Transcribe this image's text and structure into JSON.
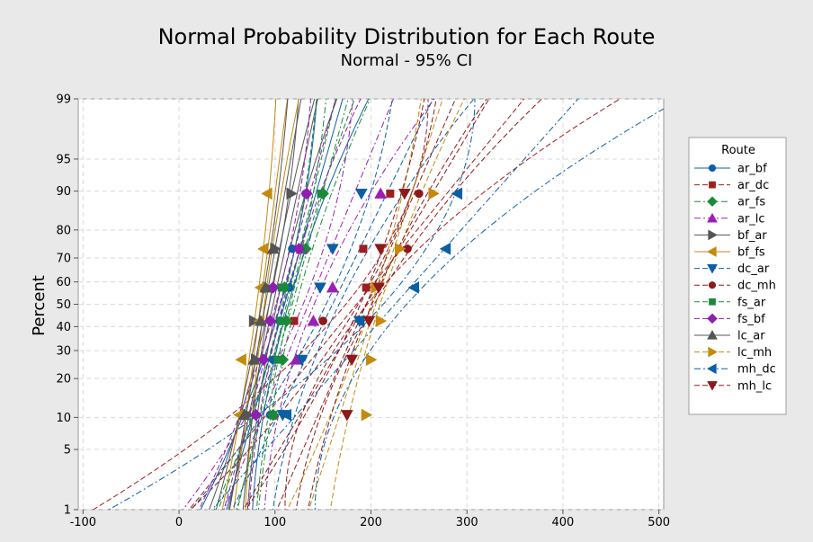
{
  "chart_data": {
    "type": "scatter",
    "title": "Normal Probability Distribution for Each Route",
    "subtitle": "Normal - 95% CI",
    "xlabel": "",
    "ylabel": "Percent",
    "xlim": [
      -105,
      505
    ],
    "ylim": [
      1,
      99
    ],
    "x_ticks": [
      -100,
      0,
      100,
      200,
      300,
      400,
      500
    ],
    "y_ticks": [
      1,
      5,
      10,
      20,
      30,
      40,
      50,
      60,
      70,
      80,
      90,
      95,
      99
    ],
    "y_scale": "normal-probability",
    "grid": true,
    "legend_title": "Route",
    "legend_position": "right",
    "series": [
      {
        "name": "ar_bf",
        "color": "#0b5fa5",
        "marker": "circle",
        "dash": "solid",
        "mean": 110,
        "sd": 26,
        "ci_lower_at_1": 28,
        "ci_upper_at_1": 82,
        "points": [
          [
            95,
            10.5
          ],
          [
            98,
            26.5
          ],
          [
            105,
            42.5
          ],
          [
            115,
            57.5
          ],
          [
            118,
            73.5
          ],
          [
            132,
            89.5
          ]
        ]
      },
      {
        "name": "ar_dc",
        "color": "#9e1f1f",
        "marker": "square",
        "dash": "dash",
        "mean": 185,
        "sd": 75,
        "ci_lower_at_1": -78,
        "ci_upper_at_1": 122,
        "points": [
          [
            120,
            42.5
          ],
          [
            125,
            26.5
          ],
          [
            195,
            57.5
          ],
          [
            192,
            73.5
          ],
          [
            220,
            89.5
          ]
        ]
      },
      {
        "name": "ar_fs",
        "color": "#1a8a3a",
        "marker": "diamond",
        "dash": "dashdot",
        "mean": 118,
        "sd": 25,
        "ci_lower_at_1": 44,
        "ci_upper_at_1": 90,
        "points": [
          [
            98,
            10.5
          ],
          [
            108,
            26.5
          ],
          [
            112,
            42.5
          ],
          [
            110,
            57.5
          ],
          [
            132,
            73.5
          ],
          [
            150,
            89.5
          ]
        ]
      },
      {
        "name": "ar_lc",
        "color": "#9b1fb5",
        "marker": "triangle-up",
        "dash": "dashdot",
        "mean": 135,
        "sd": 38,
        "ci_lower_at_1": 10,
        "ci_upper_at_1": 95,
        "points": [
          [
            122,
            26.5
          ],
          [
            140,
            42.5
          ],
          [
            160,
            57.5
          ],
          [
            128,
            73.5
          ],
          [
            210,
            89.5
          ]
        ]
      },
      {
        "name": "bf_ar",
        "color": "#555555",
        "marker": "triangle-right",
        "dash": "solid",
        "mean": 98,
        "sd": 20,
        "ci_lower_at_1": 32,
        "ci_upper_at_1": 72,
        "points": [
          [
            72,
            10.5
          ],
          [
            80,
            26.5
          ],
          [
            78,
            42.5
          ],
          [
            92,
            57.5
          ],
          [
            100,
            73.5
          ],
          [
            117,
            89.5
          ]
        ]
      },
      {
        "name": "bf_fs",
        "color": "#c48a0e",
        "marker": "triangle-left",
        "dash": "solid",
        "mean": 85,
        "sd": 12,
        "ci_lower_at_1": 34,
        "ci_upper_at_1": 58,
        "points": [
          [
            63,
            10.5
          ],
          [
            65,
            26.5
          ],
          [
            84,
            42.5
          ],
          [
            85,
            57.5
          ],
          [
            88,
            73.5
          ],
          [
            92,
            89.5
          ]
        ]
      },
      {
        "name": "dc_ar",
        "color": "#0b5fa5",
        "marker": "triangle-down",
        "dash": "dash",
        "mean": 160,
        "sd": 45,
        "ci_lower_at_1": 25,
        "ci_upper_at_1": 110,
        "points": [
          [
            108,
            10.5
          ],
          [
            128,
            26.5
          ],
          [
            188,
            42.5
          ],
          [
            147,
            57.5
          ],
          [
            160,
            73.5
          ],
          [
            190,
            89.5
          ]
        ]
      },
      {
        "name": "dc_mh",
        "color": "#8b1a1a",
        "marker": "circle",
        "dash": "dash",
        "mean": 195,
        "sd": 55,
        "ci_lower_at_1": 30,
        "ci_upper_at_1": 140,
        "points": [
          [
            150,
            42.5
          ],
          [
            238,
            73.5
          ],
          [
            250,
            89.5
          ]
        ]
      },
      {
        "name": "fs_ar",
        "color": "#1a8a3a",
        "marker": "square",
        "dash": "dash",
        "mean": 112,
        "sd": 22,
        "ci_lower_at_1": 48,
        "ci_upper_at_1": 88,
        "points": [
          [
            98,
            10.5
          ],
          [
            103,
            26.5
          ],
          [
            106,
            42.5
          ],
          [
            107,
            57.5
          ],
          [
            128,
            73.5
          ],
          [
            148,
            89.5
          ]
        ]
      },
      {
        "name": "fs_bf",
        "color": "#8e1fb0",
        "marker": "diamond",
        "dash": "dash",
        "mean": 105,
        "sd": 25,
        "ci_lower_at_1": 30,
        "ci_upper_at_1": 82,
        "points": [
          [
            80,
            10.5
          ],
          [
            88,
            26.5
          ],
          [
            95,
            42.5
          ],
          [
            98,
            57.5
          ],
          [
            125,
            73.5
          ],
          [
            133,
            89.5
          ]
        ]
      },
      {
        "name": "lc_ar",
        "color": "#555555",
        "marker": "triangle-up",
        "dash": "solid",
        "mean": 90,
        "sd": 16,
        "ci_lower_at_1": 40,
        "ci_upper_at_1": 68,
        "points": [
          [
            68,
            10.5
          ],
          [
            78,
            26.5
          ],
          [
            85,
            42.5
          ],
          [
            90,
            57.5
          ],
          [
            98,
            73.5
          ]
        ]
      },
      {
        "name": "lc_mh",
        "color": "#c48a0e",
        "marker": "triangle-right",
        "dash": "dash",
        "mean": 205,
        "sd": 30,
        "ci_lower_at_1": 150,
        "ci_upper_at_1": 195,
        "points": [
          [
            195,
            10.5
          ],
          [
            200,
            26.5
          ],
          [
            210,
            42.5
          ],
          [
            205,
            57.5
          ],
          [
            230,
            73.5
          ],
          [
            265,
            89.5
          ]
        ]
      },
      {
        "name": "mh_dc",
        "color": "#0b5fa5",
        "marker": "triangle-left",
        "dash": "dashdot",
        "mean": 225,
        "sd": 82,
        "ci_lower_at_1": -45,
        "ci_upper_at_1": 170,
        "points": [
          [
            112,
            10.5
          ],
          [
            188,
            42.5
          ],
          [
            245,
            57.5
          ],
          [
            278,
            73.5
          ],
          [
            290,
            89.5
          ]
        ]
      },
      {
        "name": "mh_lc",
        "color": "#8b1a1a",
        "marker": "triangle-down",
        "dash": "dash",
        "mean": 195,
        "sd": 40,
        "ci_lower_at_1": 110,
        "ci_upper_at_1": 175,
        "points": [
          [
            175,
            10.5
          ],
          [
            180,
            26.5
          ],
          [
            198,
            42.5
          ],
          [
            208,
            57.5
          ],
          [
            210,
            73.5
          ],
          [
            235,
            89.5
          ]
        ]
      }
    ]
  }
}
